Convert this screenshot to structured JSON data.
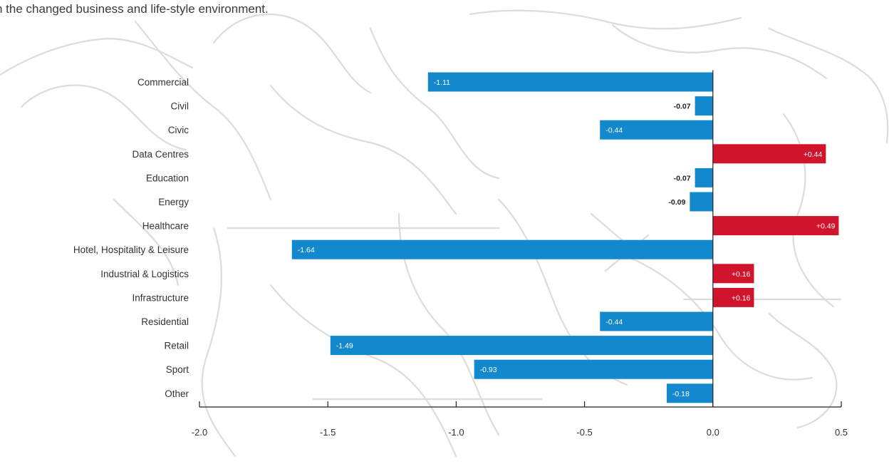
{
  "intro_text": "n the changed business and life-style environment.",
  "colors": {
    "negative": "#1488cc",
    "positive": "#d0142c",
    "axis": "#222222",
    "background_lines": "#dcdcdc"
  },
  "chart_data": {
    "type": "bar",
    "orientation": "horizontal",
    "title": "",
    "xlabel": "",
    "ylabel": "",
    "categories": [
      "Commercial",
      "Civil",
      "Civic",
      "Data Centres",
      "Education",
      "Energy",
      "Healthcare",
      "Hotel, Hospitality & Leisure",
      "Industrial & Logistics",
      "Infrastructure",
      "Residential",
      "Retail",
      "Sport",
      "Other"
    ],
    "values": [
      -1.11,
      -0.07,
      -0.44,
      0.44,
      -0.07,
      -0.09,
      0.49,
      -1.64,
      0.16,
      0.16,
      -0.44,
      -1.49,
      -0.93,
      -0.18
    ],
    "value_labels": [
      "-1.11",
      "-0.07",
      "-0.44",
      "+0.44",
      "-0.07",
      "-0.09",
      "+0.49",
      "-1.64",
      "+0.16",
      "+0.16",
      "-0.44",
      "-1.49",
      "-0.93",
      "-0.18"
    ],
    "xlim": [
      -2.0,
      0.5
    ],
    "xticks": [
      -2.0,
      -1.5,
      -1.0,
      -0.5,
      0.0,
      0.5
    ],
    "xtick_labels": [
      "-2.0",
      "-1.5",
      "-1.0",
      "-0.5",
      "0.0",
      "0.5"
    ],
    "grid": false,
    "legend": "none"
  }
}
